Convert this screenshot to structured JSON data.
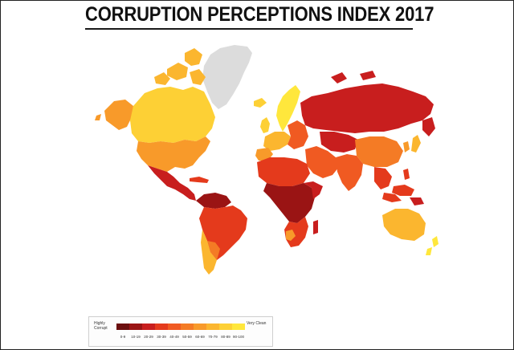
{
  "header": {
    "title": "CORRUPTION PERCEPTIONS INDEX 2017"
  },
  "legend": {
    "low_label": "Highly Corrupt",
    "high_label": "Very Clean",
    "bins": [
      {
        "label": "0-9",
        "color": "#6b0f0f"
      },
      {
        "label": "10-19",
        "color": "#9a1414"
      },
      {
        "label": "20-29",
        "color": "#c81e1e"
      },
      {
        "label": "30-39",
        "color": "#e43a1c"
      },
      {
        "label": "40-49",
        "color": "#f05a22"
      },
      {
        "label": "50-59",
        "color": "#f47b25"
      },
      {
        "label": "60-69",
        "color": "#f89a2a"
      },
      {
        "label": "70-79",
        "color": "#fbb62f"
      },
      {
        "label": "80-89",
        "color": "#fdd035"
      },
      {
        "label": "90-100",
        "color": "#ffe73c"
      }
    ],
    "no_data_color": "#dcdcdc"
  }
}
